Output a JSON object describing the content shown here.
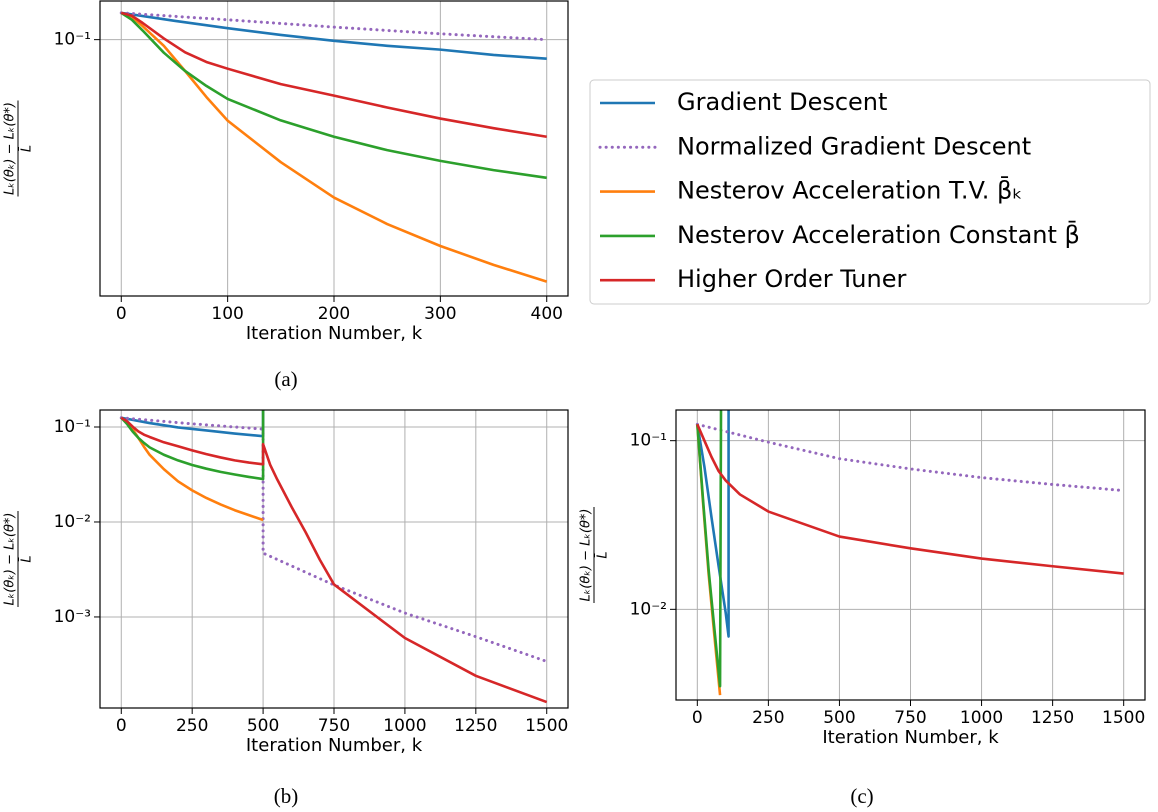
{
  "chart_data": [
    {
      "type": "line",
      "caption": "(a)",
      "xlabel": "Iteration Number, k",
      "ylabel": {
        "numerator": "Lₖ(θₖ) − Lₖ(θ*)",
        "denominator": "L̄"
      },
      "log_y": true,
      "grid": true,
      "legend": "outside right",
      "xlim": [
        -20,
        420
      ],
      "xticks": [
        0,
        100,
        200,
        300,
        400
      ],
      "ylim": [
        0.0118,
        0.138
      ],
      "yticks": [
        {
          "value": 0.1,
          "label": "10⁻¹"
        }
      ],
      "series": [
        {
          "name": "Gradient Descent",
          "color": "#1f77b4",
          "style": "solid",
          "x": [
            0,
            50,
            100,
            150,
            200,
            250,
            300,
            350,
            400
          ],
          "values": [
            0.125,
            0.117,
            0.11,
            0.104,
            0.099,
            0.095,
            0.092,
            0.088,
            0.0853
          ]
        },
        {
          "name": "Normalized Gradient Descent",
          "color": "#9467bd",
          "style": "dotted",
          "x": [
            0,
            100,
            200,
            300,
            400
          ],
          "values": [
            0.125,
            0.118,
            0.111,
            0.105,
            0.1
          ]
        },
        {
          "name": "Nesterov Acceleration T.V. β̄ₖ",
          "color": "#ff7f0e",
          "style": "solid",
          "x": [
            0,
            10,
            20,
            40,
            60,
            80,
            100,
            150,
            200,
            250,
            300,
            350,
            400
          ],
          "values": [
            0.125,
            0.121,
            0.112,
            0.095,
            0.077,
            0.062,
            0.0509,
            0.036,
            0.0268,
            0.0215,
            0.0179,
            0.0153,
            0.0133
          ]
        },
        {
          "name": "Nesterov Acceleration Constant β̄",
          "color": "#2ca02c",
          "style": "solid",
          "x": [
            0,
            10,
            20,
            40,
            60,
            80,
            100,
            150,
            200,
            250,
            300,
            350,
            400
          ],
          "values": [
            0.125,
            0.118,
            0.108,
            0.0897,
            0.077,
            0.068,
            0.061,
            0.051,
            0.0445,
            0.0398,
            0.0364,
            0.0337,
            0.0316
          ]
        },
        {
          "name": "Higher Order Tuner",
          "color": "#d62728",
          "style": "solid",
          "x": [
            0,
            10,
            20,
            40,
            60,
            80,
            100,
            150,
            200,
            250,
            300,
            350,
            400
          ],
          "values": [
            0.125,
            0.122,
            0.115,
            0.101,
            0.09,
            0.083,
            0.0785,
            0.069,
            0.0627,
            0.0568,
            0.0518,
            0.0478,
            0.0445
          ]
        }
      ]
    },
    {
      "type": "line",
      "caption": "(b)",
      "xlabel": "Iteration Number, k",
      "ylabel": {
        "numerator": "Lₖ(θₖ) − Lₖ(θ*)",
        "denominator": "L̄"
      },
      "log_y": true,
      "grid": true,
      "xlim": [
        -75,
        1575
      ],
      "xticks": [
        0,
        250,
        500,
        750,
        1000,
        1250,
        1500
      ],
      "ylim": [
        0.00011,
        0.151
      ],
      "yticks": [
        {
          "value": 0.1,
          "label": "10⁻¹"
        },
        {
          "value": 0.01,
          "label": "10⁻²"
        },
        {
          "value": 0.001,
          "label": "10⁻³"
        }
      ],
      "series": [
        {
          "color": "#1f77b4",
          "style": "solid",
          "x": [
            0,
            100,
            200,
            300,
            400,
            500,
            500
          ],
          "values": [
            0.125,
            0.11,
            0.099,
            0.092,
            0.0853,
            0.08,
            1
          ]
        },
        {
          "color": "#9467bd",
          "style": "dotted",
          "x": [
            0,
            250,
            500,
            500,
            750,
            1000,
            1250,
            1500
          ],
          "values": [
            0.125,
            0.108,
            0.095,
            0.0047,
            0.00217,
            0.0011,
            0.00062,
            0.00034
          ]
        },
        {
          "color": "#ff7f0e",
          "style": "solid",
          "x": [
            0,
            20,
            40,
            60,
            80,
            100,
            150,
            200,
            250,
            300,
            350,
            400,
            450,
            500
          ],
          "values": [
            0.125,
            0.112,
            0.095,
            0.077,
            0.062,
            0.0509,
            0.036,
            0.0268,
            0.0215,
            0.0179,
            0.0153,
            0.0133,
            0.0118,
            0.0105
          ]
        },
        {
          "color": "#2ca02c",
          "style": "solid",
          "x": [
            0,
            20,
            40,
            60,
            80,
            100,
            150,
            200,
            250,
            300,
            350,
            400,
            450,
            500,
            500
          ],
          "values": [
            0.125,
            0.108,
            0.0897,
            0.077,
            0.068,
            0.061,
            0.051,
            0.0445,
            0.0398,
            0.0364,
            0.0337,
            0.0316,
            0.0298,
            0.0283,
            1
          ]
        },
        {
          "color": "#d62728",
          "style": "solid",
          "x": [
            0,
            20,
            40,
            60,
            80,
            100,
            150,
            200,
            250,
            300,
            350,
            400,
            450,
            500,
            500,
            525,
            550,
            600,
            650,
            700,
            750,
            1000,
            1250,
            1500
          ],
          "values": [
            0.125,
            0.115,
            0.101,
            0.09,
            0.083,
            0.0785,
            0.069,
            0.0627,
            0.0568,
            0.0518,
            0.0478,
            0.0445,
            0.0422,
            0.0405,
            0.066,
            0.04,
            0.028,
            0.0145,
            0.0078,
            0.004,
            0.0022,
            0.0006,
            0.00024,
            0.000127
          ]
        }
      ]
    },
    {
      "type": "line",
      "caption": "(c)",
      "xlabel": "Iteration Number, k",
      "ylabel": {
        "numerator": "Lₖ(θₖ) − Lₖ(θ*)",
        "denominator": "L̄"
      },
      "log_y": true,
      "grid": true,
      "xlim": [
        -75,
        1575
      ],
      "xticks": [
        0,
        250,
        500,
        750,
        1000,
        1250,
        1500
      ],
      "ylim": [
        0.0029,
        0.152
      ],
      "yticks": [
        {
          "value": 0.1,
          "label": "10⁻¹"
        },
        {
          "value": 0.01,
          "label": "10⁻²"
        }
      ],
      "series": [
        {
          "color": "#1f77b4",
          "style": "solid",
          "x": [
            0,
            25,
            50,
            75,
            100,
            110,
            110
          ],
          "values": [
            0.125,
            0.07,
            0.035,
            0.018,
            0.0095,
            0.0069,
            1
          ]
        },
        {
          "color": "#9467bd",
          "style": "dotted",
          "x": [
            0,
            250,
            500,
            750,
            1000,
            1250,
            1500
          ],
          "values": [
            0.125,
            0.098,
            0.0782,
            0.068,
            0.0604,
            0.055,
            0.0506
          ]
        },
        {
          "color": "#ff7f0e",
          "style": "solid",
          "x": [
            0,
            20,
            40,
            60,
            80
          ],
          "values": [
            0.125,
            0.043,
            0.016,
            0.007,
            0.0031
          ]
        },
        {
          "color": "#2ca02c",
          "style": "solid",
          "x": [
            0,
            20,
            40,
            60,
            80,
            85
          ],
          "values": [
            0.125,
            0.045,
            0.017,
            0.0077,
            0.0035,
            1
          ]
        },
        {
          "color": "#d62728",
          "style": "solid",
          "x": [
            0,
            25,
            50,
            75,
            100,
            150,
            250,
            500,
            750,
            1000,
            1250,
            1500
          ],
          "values": [
            0.125,
            0.1,
            0.08,
            0.066,
            0.058,
            0.048,
            0.038,
            0.027,
            0.023,
            0.02,
            0.018,
            0.0163
          ]
        }
      ]
    }
  ]
}
